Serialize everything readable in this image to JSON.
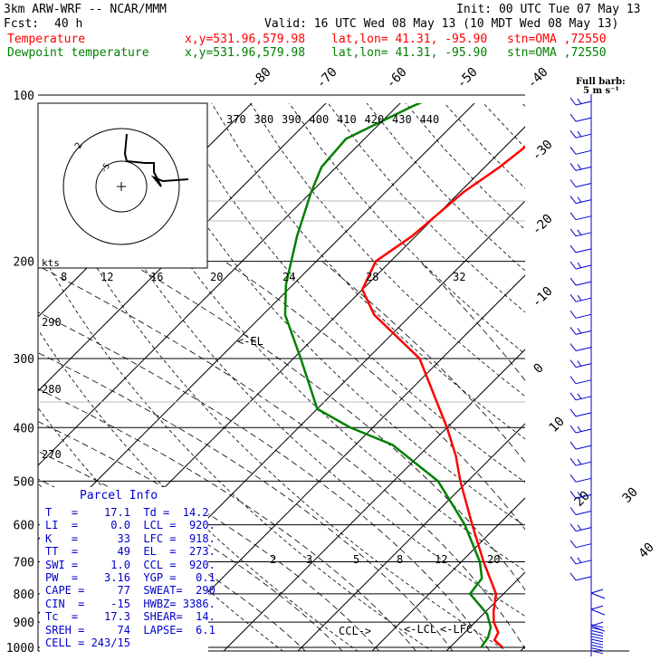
{
  "header": {
    "model": "3km ARW-WRF -- NCAR/MMM",
    "init": "Init: 00 UTC Tue 07 May 13",
    "fcst_label": "Fcst:",
    "fcst_value": "40 h",
    "valid": "Valid: 16 UTC Wed 08 May 13 (10 MDT Wed 08 May 13)",
    "temp_label": "Temperature",
    "dew_label": "Dewpoint temperature",
    "xy": "x,y=531.96,579.98",
    "latlon": "lat,lon= 41.31, -95.90",
    "stn": "stn=OMA ,72550"
  },
  "colors": {
    "temperature": "#ff0000",
    "dewpoint": "#008000",
    "info": "#0000cc",
    "barb": "#0000cc",
    "grid": "#000000"
  },
  "chart_data": {
    "type": "line",
    "title": "",
    "xlabel": "",
    "ylabel": "",
    "pressure_levels": [
      100,
      200,
      300,
      400,
      500,
      600,
      700,
      800,
      900,
      1000
    ],
    "isotherm_labels": [
      "-80",
      "-70",
      "-60",
      "-50",
      "-40",
      "-30",
      "-20",
      "-10",
      "0",
      "10",
      "20",
      "30",
      "40"
    ],
    "theta_e_labels": [
      "370",
      "380",
      "390",
      "400",
      "410",
      "420",
      "430",
      "440"
    ],
    "mixing_ratio_labels": [
      "2",
      "3",
      "5",
      "8",
      "12",
      "20"
    ],
    "dry_adiabat_labels": [
      "290",
      "280",
      "270"
    ],
    "series": [
      {
        "name": "Temperature",
        "color": "#ff0000",
        "points": [
          {
            "p": 1000,
            "t": 17.1
          },
          {
            "p": 970,
            "t": 15.0
          },
          {
            "p": 940,
            "t": 14.5
          },
          {
            "p": 900,
            "t": 12.5
          },
          {
            "p": 860,
            "t": 11.0
          },
          {
            "p": 800,
            "t": 9.0
          },
          {
            "p": 700,
            "t": 3.0
          },
          {
            "p": 600,
            "t": -3.5
          },
          {
            "p": 500,
            "t": -11.0
          },
          {
            "p": 450,
            "t": -15.0
          },
          {
            "p": 400,
            "t": -20.0
          },
          {
            "p": 300,
            "t": -33.0
          },
          {
            "p": 250,
            "t": -45.0
          },
          {
            "p": 225,
            "t": -50.0
          },
          {
            "p": 200,
            "t": -52.0
          },
          {
            "p": 180,
            "t": -50.5
          },
          {
            "p": 150,
            "t": -49.5
          },
          {
            "p": 135,
            "t": -48.0
          },
          {
            "p": 120,
            "t": -47.0
          },
          {
            "p": 100,
            "t": -47.5
          }
        ]
      },
      {
        "name": "Dewpoint temperature",
        "color": "#008000",
        "points": [
          {
            "p": 1000,
            "t": 14.2
          },
          {
            "p": 960,
            "t": 13.8
          },
          {
            "p": 920,
            "t": 12.8
          },
          {
            "p": 870,
            "t": 10.5
          },
          {
            "p": 800,
            "t": 5.5
          },
          {
            "p": 750,
            "t": 5.0
          },
          {
            "p": 700,
            "t": 2.5
          },
          {
            "p": 600,
            "t": -4.5
          },
          {
            "p": 500,
            "t": -14.0
          },
          {
            "p": 430,
            "t": -25.0
          },
          {
            "p": 400,
            "t": -33.0
          },
          {
            "p": 370,
            "t": -40.0
          },
          {
            "p": 300,
            "t": -49.0
          },
          {
            "p": 250,
            "t": -57.0
          },
          {
            "p": 220,
            "t": -61.0
          },
          {
            "p": 180,
            "t": -66.0
          },
          {
            "p": 150,
            "t": -70.0
          },
          {
            "p": 135,
            "t": -72.0
          },
          {
            "p": 120,
            "t": -72.5
          },
          {
            "p": 105,
            "t": -68.0
          },
          {
            "p": 100,
            "t": -66.0
          }
        ]
      }
    ],
    "annotations": [
      "<-EL",
      "<-LCL",
      "<-LFC",
      "CCL->"
    ]
  },
  "hodograph": {
    "axis_label": "kts",
    "speed_labels": [
      "8",
      "12",
      "16",
      "20",
      "24",
      "28",
      "32"
    ],
    "ring_labels": [
      "-5",
      "2"
    ]
  },
  "wind_barbs": {
    "legend": "Full barb:",
    "legend_value": "5 m s⁻¹",
    "count": 33
  },
  "parcel_info": {
    "title": "Parcel Info",
    "rows": [
      "T   =    17.1  Td =  14.2",
      "LI  =     0.0  LCL =  920.",
      "K   =      33  LFC =  918.",
      "TT  =      49  EL  =  273.",
      "SWI =     1.0  CCL =  920.",
      "PW  =    3.16  YGP =   0.1",
      "CAPE =     77  SWEAT=  290",
      "CIN  =    -15  HWBZ= 3386.",
      "Tc  =    17.3  SHEAR=  14.",
      "SREH =     74  LAPSE=  6.1",
      "CELL = 243/15"
    ]
  }
}
